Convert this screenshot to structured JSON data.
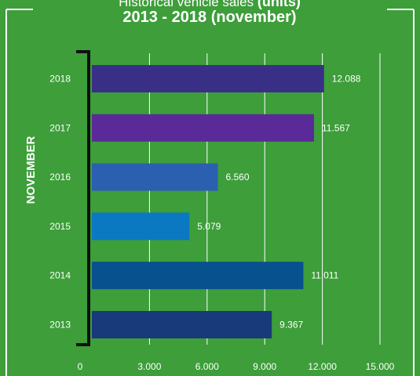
{
  "title_line1": "Historical vehicle sales",
  "title_line1_bold": "(units)",
  "title_line2": "2013 - 2018 (november)",
  "ylabel": "NOVEMBER",
  "colors": {
    "background": "#3d9e3a",
    "bar_2018": "#3a2f86",
    "bar_2017": "#5a2a99",
    "bar_2016": "#2b5fb0",
    "bar_2015": "#0b78c2",
    "bar_2014": "#08518f",
    "bar_2013": "#183a7a"
  },
  "chart_data": {
    "type": "bar",
    "orientation": "horizontal",
    "categories": [
      "2018",
      "2017",
      "2016",
      "2015",
      "2014",
      "2013"
    ],
    "values": [
      12088,
      11567,
      6560,
      5079,
      11011,
      9367
    ],
    "value_labels": [
      "12.088",
      "11.567",
      "6.560",
      "5.079",
      "11.011",
      "9.367"
    ],
    "xticks": [
      0,
      3000,
      6000,
      9000,
      12000,
      15000
    ],
    "xtick_labels": [
      "0",
      "3.000",
      "6.000",
      "9.000",
      "12.000",
      "15.000"
    ],
    "xlim": [
      0,
      15000
    ],
    "grid": true
  }
}
